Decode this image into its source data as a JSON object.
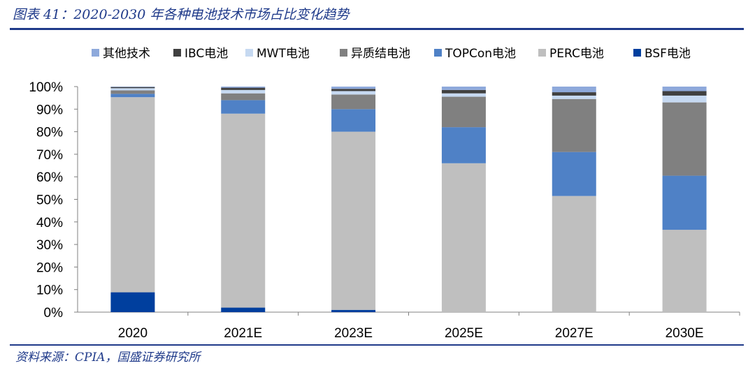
{
  "figure": {
    "title": "图表 41：2020-2030 年各种电池技术市场占比变化趋势",
    "source": "资料来源：CPIA，国盛证券研究所"
  },
  "chart_data": {
    "type": "bar",
    "stacked": true,
    "categories": [
      "2020",
      "2021E",
      "2023E",
      "2025E",
      "2027E",
      "2030E"
    ],
    "ylim": [
      0,
      100
    ],
    "yticks": [
      "0%",
      "10%",
      "20%",
      "30%",
      "40%",
      "50%",
      "60%",
      "70%",
      "80%",
      "90%",
      "100%"
    ],
    "legend_position": "top",
    "legend_order": [
      "其他技术",
      "IBC电池",
      "MWT电池",
      "异质结电池",
      "TOPCon电池",
      "PERC电池",
      "BSF电池"
    ],
    "series": [
      {
        "name": "BSF电池",
        "color": "#003f9e",
        "values": [
          8.8,
          2.0,
          1.0,
          0.0,
          0.0,
          0.0
        ]
      },
      {
        "name": "PERC电池",
        "color": "#bfbfbf",
        "values": [
          86.5,
          86.0,
          79.0,
          66.0,
          51.5,
          36.5
        ]
      },
      {
        "name": "TOPCon电池",
        "color": "#4f81c6",
        "values": [
          1.5,
          6.0,
          10.0,
          16.0,
          19.5,
          24.0
        ]
      },
      {
        "name": "异质结电池",
        "color": "#808080",
        "values": [
          1.5,
          3.0,
          6.5,
          13.5,
          23.5,
          32.5
        ]
      },
      {
        "name": "MWT电池",
        "color": "#c6d9f1",
        "values": [
          1.0,
          1.5,
          1.5,
          1.5,
          1.5,
          3.0
        ]
      },
      {
        "name": "IBC电池",
        "color": "#404040",
        "values": [
          0.5,
          1.0,
          1.0,
          1.5,
          1.5,
          2.0
        ]
      },
      {
        "name": "其他技术",
        "color": "#8ea9db",
        "values": [
          0.2,
          0.5,
          1.0,
          1.5,
          2.5,
          2.0
        ]
      }
    ]
  }
}
